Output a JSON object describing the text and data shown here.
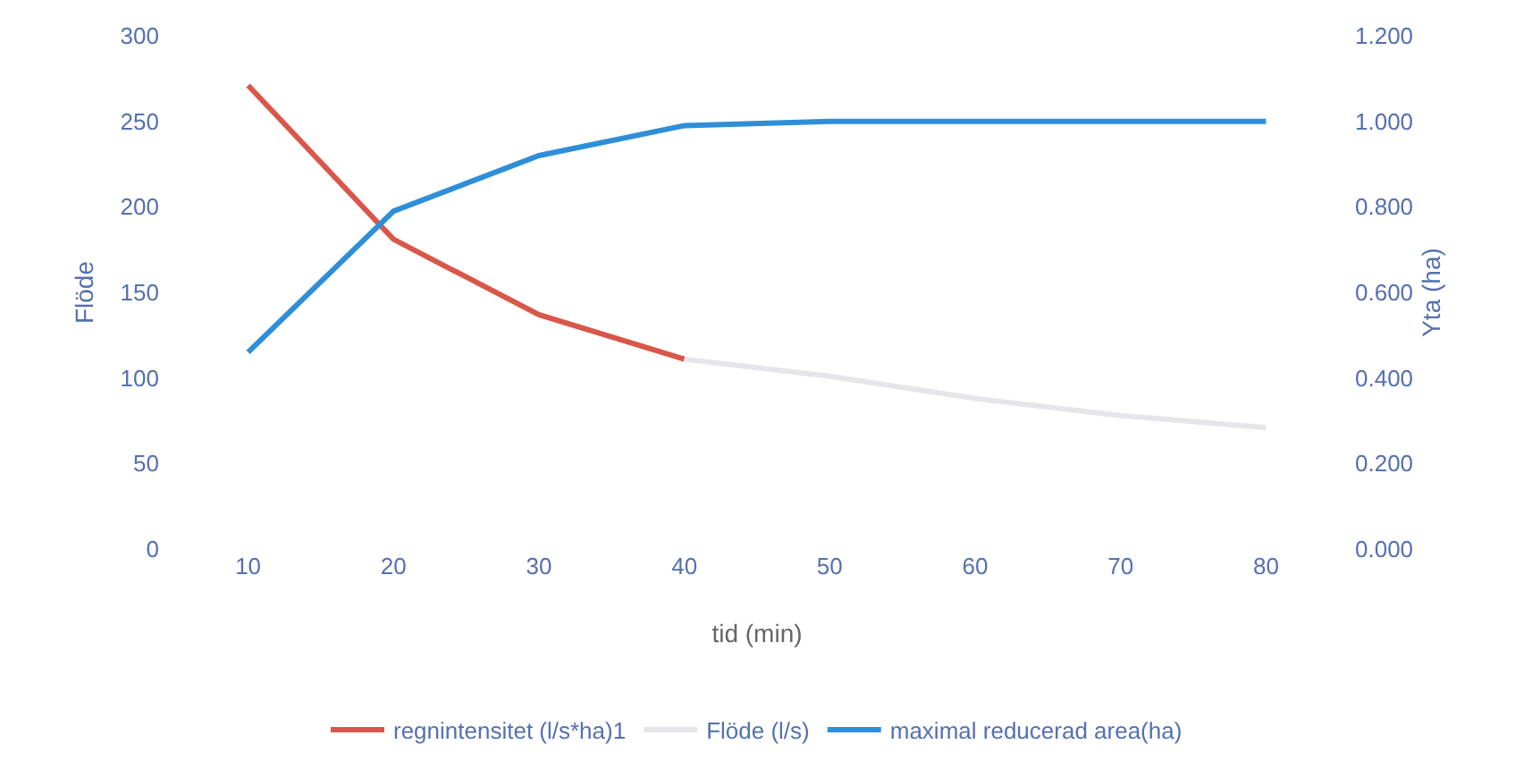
{
  "chart_data": {
    "type": "line",
    "xlabel": "tid (min)",
    "ylabel": "Flöde",
    "y2label": "Yta (ha)",
    "categories": [
      "10",
      "20",
      "30",
      "40",
      "50",
      "60",
      "70",
      "80"
    ],
    "series": [
      {
        "name": "regnintensitet (l/s*ha)1",
        "color": "#d9574a",
        "values": [
          271,
          181,
          137,
          111,
          null,
          null,
          null,
          null
        ]
      },
      {
        "name": "Flöde (l/s)",
        "color": "#e6e6ea",
        "values": [
          null,
          null,
          null,
          111,
          101,
          88,
          78,
          71
        ]
      },
      {
        "name": "maximal reducerad area(ha)",
        "color": "#2e8fd8",
        "axis": "y2",
        "values": [
          0.46,
          0.79,
          0.92,
          0.99,
          1.0,
          1.0,
          1.0,
          1.0
        ]
      }
    ],
    "ylim": [
      0,
      300
    ],
    "yticks": [
      0,
      50,
      100,
      150,
      200,
      250,
      300
    ],
    "y2lim": [
      0,
      1.2
    ],
    "y2ticks": [
      {
        "value": 0,
        "label": "0.000"
      },
      {
        "value": 0.2,
        "label": "0.200"
      },
      {
        "value": 0.4,
        "label": "0.400"
      },
      {
        "value": 0.6,
        "label": "0.600"
      },
      {
        "value": 0.8,
        "label": "0.800"
      },
      {
        "value": 1.0,
        "label": "1.000"
      },
      {
        "value": 1.2,
        "label": "1.200"
      }
    ],
    "grid": false,
    "legend": "bottom",
    "marker": "none",
    "line_style": "solid"
  }
}
